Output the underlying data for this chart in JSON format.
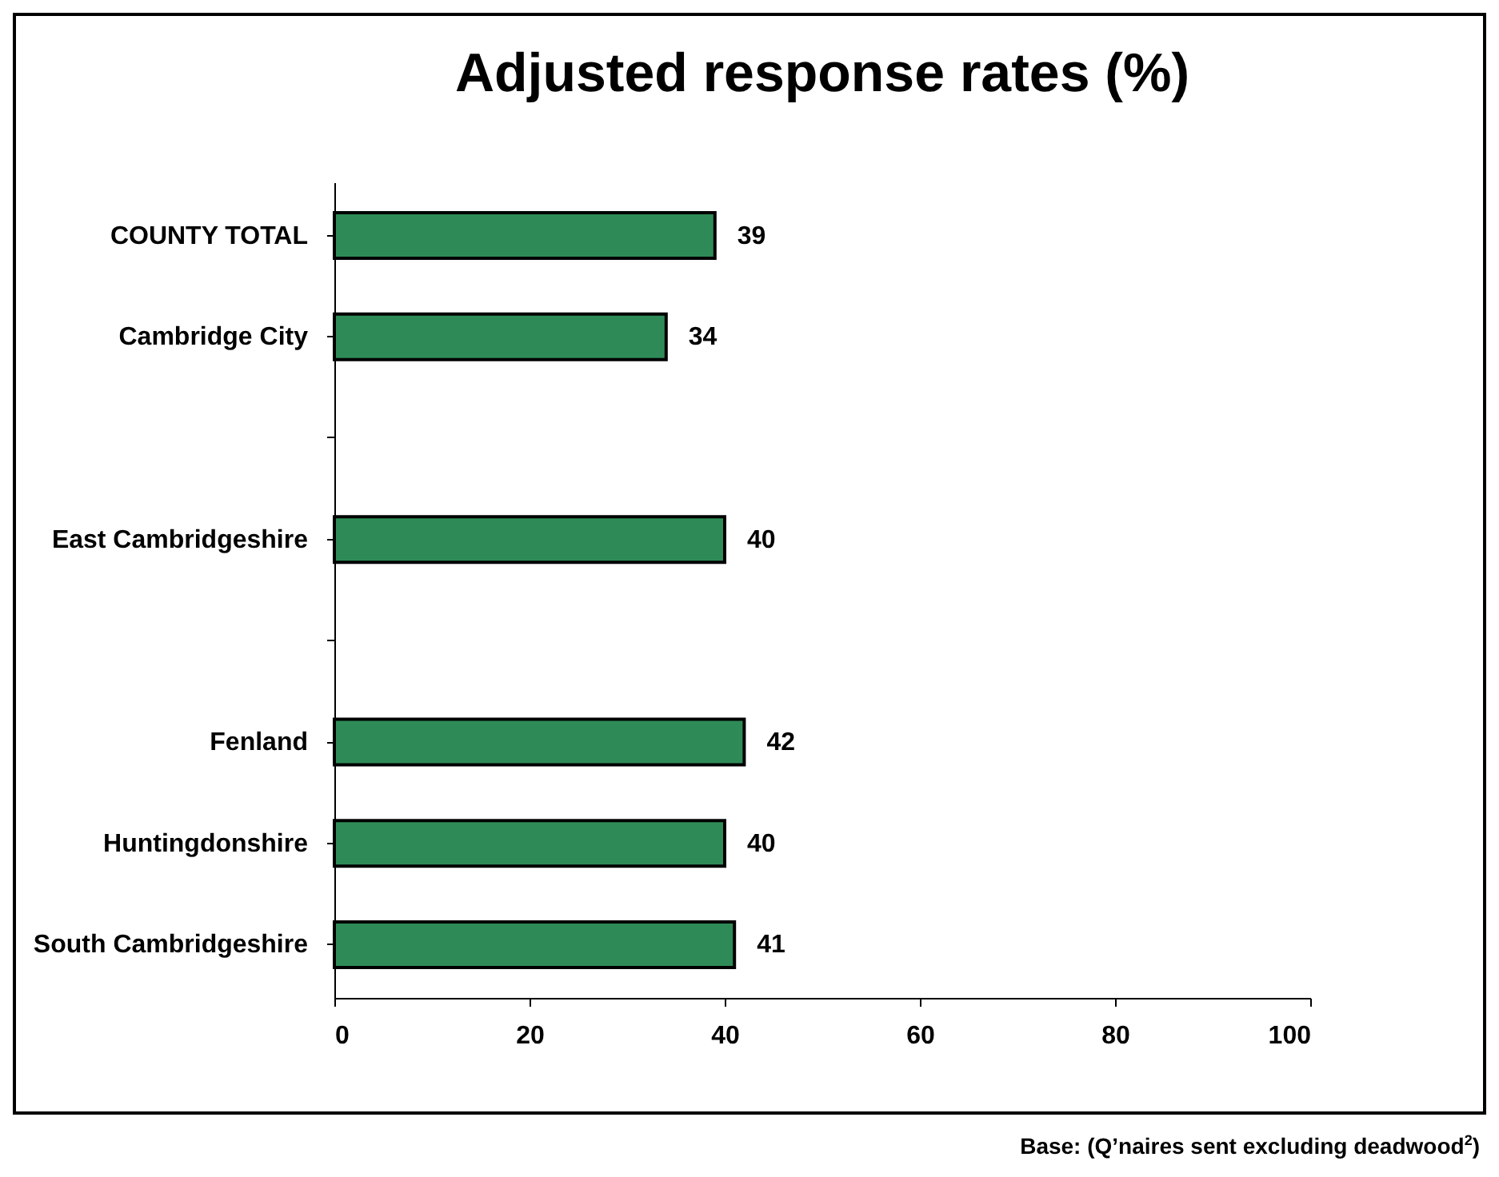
{
  "chart_data": {
    "type": "bar",
    "orientation": "horizontal",
    "title": "Adjusted response rates (%)",
    "categories": [
      "COUNTY TOTAL",
      "Cambridge City",
      null,
      "East Cambridgeshire",
      null,
      "Fenland",
      "Huntingdonshire",
      "South Cambridgeshire"
    ],
    "values": [
      39,
      34,
      null,
      40,
      null,
      42,
      40,
      41
    ],
    "color": "#2e8b57",
    "xlim": [
      0,
      100
    ],
    "xticks": [
      0,
      20,
      40,
      60,
      80,
      100
    ],
    "grid": false,
    "data_labels": true,
    "annotations": [
      "Base: (Q’naires sent excluding deadwood$^{2}$)"
    ]
  }
}
